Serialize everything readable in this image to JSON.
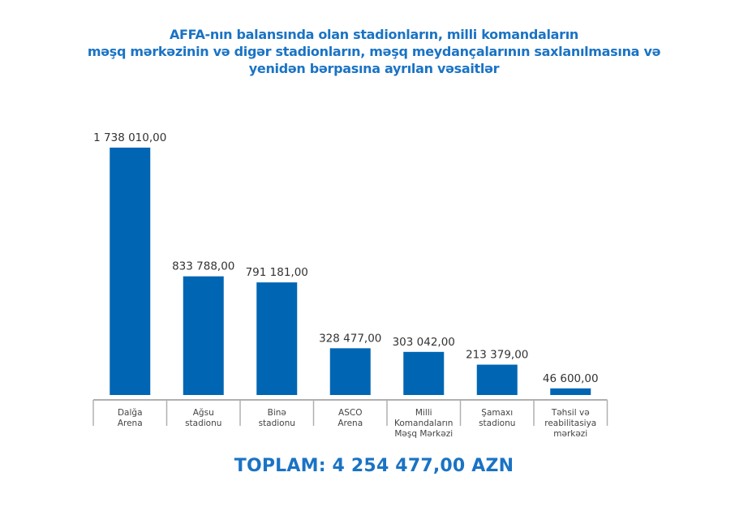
{
  "chart_data": {
    "type": "bar",
    "title_lines": [
      "AFFA-nın balansında olan stadionların, milli komandaların",
      "məşq mərkəzinin və digər stadionların, məşq meydançalarının saxlanılmasına və",
      "yenidən bərpasına ayrılan vəsaitlər"
    ],
    "categories": [
      [
        "Dalğa",
        "Arena"
      ],
      [
        "Ağsu",
        "stadionu"
      ],
      [
        "Binə",
        "stadionu"
      ],
      [
        "ASCO",
        "Arena"
      ],
      [
        "Milli",
        "Komandaların",
        "Məşq Mərkəzi"
      ],
      [
        "Şamaxı",
        "stadionu"
      ],
      [
        "Təhsil və",
        "reabilitasiya",
        "mərkəzi"
      ]
    ],
    "values": [
      1738010.0,
      833788.0,
      791181.0,
      328477.0,
      303042.0,
      213379.0,
      46600.0
    ],
    "data_labels": [
      "1 738 010,00",
      "833 788,00",
      "791 181,00",
      "328 477,00",
      "303 042,00",
      "213 379,00",
      "46 600,00"
    ],
    "total_label": "TOPLAM:  4 254 477,00 AZN",
    "bar_color": "#0066b3",
    "grid": false
  }
}
